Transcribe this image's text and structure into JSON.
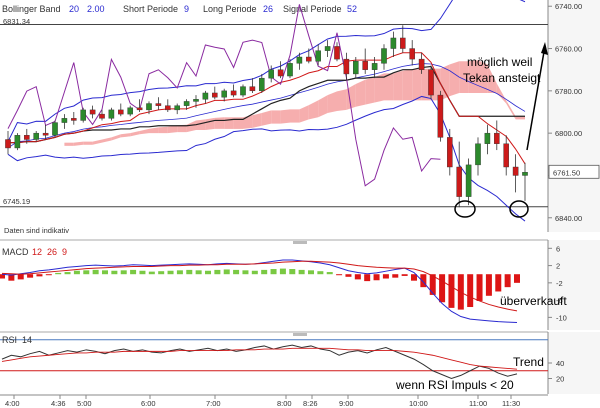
{
  "header": {
    "bollinger_label": "Bollinger Band",
    "bollinger_p1": "20",
    "bollinger_p2": "2.00",
    "short_label": "Short Periode",
    "short_val": "9",
    "long_label": "Long Periode",
    "long_val": "26",
    "signal_label": "Signal Periode",
    "signal_val": "52",
    "top_value": "6831.34"
  },
  "main": {
    "low_value": "6745.19",
    "last_price": "6761.50",
    "y_ticks": [
      "6840.00",
      "6820.00",
      "6800.00",
      "6780.00",
      "6760.00",
      "6740.00"
    ],
    "status": "Daten sind indikativ"
  },
  "macd": {
    "label": "MACD",
    "p1": "12",
    "p2": "26",
    "p3": "9",
    "y_ticks": [
      "6",
      "2",
      "-2",
      "-6",
      "-10"
    ]
  },
  "rsi": {
    "label": "RSI",
    "period": "14",
    "y_ticks": [
      "40",
      "20"
    ]
  },
  "time_axis": [
    "4:00",
    "4:36",
    "5:00",
    "6:00",
    "7:00",
    "8:00",
    "8:26",
    "9:00",
    "10:00",
    "11:00",
    "11:30"
  ],
  "annotations": {
    "note1": "möglich weil",
    "note2": "Tekan ansteigt",
    "note3": "überverkauft",
    "note4": "Trend",
    "note5": "wenn RSI  Impuls < 20"
  },
  "chart_data": [
    {
      "type": "candlestick",
      "title": "",
      "ylim": [
        6738,
        6842
      ],
      "y_ticks": [
        6740,
        6760,
        6780,
        6800,
        6820,
        6840
      ],
      "reference_lines": [
        6831.34,
        6745.19
      ],
      "last_price": 6761.5,
      "candles": [
        {
          "o": 6777,
          "h": 6781,
          "l": 6770,
          "c": 6773
        },
        {
          "o": 6773,
          "h": 6780,
          "l": 6772,
          "c": 6779
        },
        {
          "o": 6779,
          "h": 6782,
          "l": 6775,
          "c": 6777
        },
        {
          "o": 6777,
          "h": 6781,
          "l": 6776,
          "c": 6780
        },
        {
          "o": 6780,
          "h": 6784,
          "l": 6777,
          "c": 6779
        },
        {
          "o": 6779,
          "h": 6786,
          "l": 6778,
          "c": 6785
        },
        {
          "o": 6785,
          "h": 6789,
          "l": 6782,
          "c": 6787
        },
        {
          "o": 6787,
          "h": 6790,
          "l": 6784,
          "c": 6786
        },
        {
          "o": 6786,
          "h": 6792,
          "l": 6785,
          "c": 6791
        },
        {
          "o": 6791,
          "h": 6793,
          "l": 6787,
          "c": 6789
        },
        {
          "o": 6789,
          "h": 6791,
          "l": 6786,
          "c": 6787
        },
        {
          "o": 6787,
          "h": 6792,
          "l": 6786,
          "c": 6791
        },
        {
          "o": 6791,
          "h": 6794,
          "l": 6788,
          "c": 6789
        },
        {
          "o": 6789,
          "h": 6793,
          "l": 6788,
          "c": 6792
        },
        {
          "o": 6792,
          "h": 6796,
          "l": 6790,
          "c": 6791
        },
        {
          "o": 6791,
          "h": 6795,
          "l": 6789,
          "c": 6794
        },
        {
          "o": 6794,
          "h": 6797,
          "l": 6791,
          "c": 6793
        },
        {
          "o": 6793,
          "h": 6796,
          "l": 6790,
          "c": 6791
        },
        {
          "o": 6791,
          "h": 6794,
          "l": 6789,
          "c": 6793
        },
        {
          "o": 6793,
          "h": 6796,
          "l": 6791,
          "c": 6795
        },
        {
          "o": 6795,
          "h": 6798,
          "l": 6792,
          "c": 6796
        },
        {
          "o": 6796,
          "h": 6800,
          "l": 6794,
          "c": 6799
        },
        {
          "o": 6799,
          "h": 6802,
          "l": 6796,
          "c": 6797
        },
        {
          "o": 6797,
          "h": 6801,
          "l": 6795,
          "c": 6800
        },
        {
          "o": 6800,
          "h": 6803,
          "l": 6797,
          "c": 6798
        },
        {
          "o": 6798,
          "h": 6803,
          "l": 6797,
          "c": 6802
        },
        {
          "o": 6802,
          "h": 6806,
          "l": 6799,
          "c": 6800
        },
        {
          "o": 6800,
          "h": 6808,
          "l": 6799,
          "c": 6806
        },
        {
          "o": 6806,
          "h": 6812,
          "l": 6804,
          "c": 6810
        },
        {
          "o": 6810,
          "h": 6814,
          "l": 6806,
          "c": 6807
        },
        {
          "o": 6807,
          "h": 6815,
          "l": 6806,
          "c": 6813
        },
        {
          "o": 6813,
          "h": 6818,
          "l": 6810,
          "c": 6816
        },
        {
          "o": 6816,
          "h": 6820,
          "l": 6813,
          "c": 6814
        },
        {
          "o": 6814,
          "h": 6822,
          "l": 6812,
          "c": 6819
        },
        {
          "o": 6819,
          "h": 6824,
          "l": 6816,
          "c": 6821
        },
        {
          "o": 6821,
          "h": 6823,
          "l": 6814,
          "c": 6815
        },
        {
          "o": 6815,
          "h": 6818,
          "l": 6805,
          "c": 6808
        },
        {
          "o": 6808,
          "h": 6816,
          "l": 6806,
          "c": 6814
        },
        {
          "o": 6814,
          "h": 6820,
          "l": 6808,
          "c": 6810
        },
        {
          "o": 6810,
          "h": 6816,
          "l": 6806,
          "c": 6813
        },
        {
          "o": 6813,
          "h": 6822,
          "l": 6810,
          "c": 6820
        },
        {
          "o": 6820,
          "h": 6828,
          "l": 6816,
          "c": 6825
        },
        {
          "o": 6825,
          "h": 6831,
          "l": 6818,
          "c": 6820
        },
        {
          "o": 6820,
          "h": 6824,
          "l": 6812,
          "c": 6815
        },
        {
          "o": 6815,
          "h": 6818,
          "l": 6808,
          "c": 6810
        },
        {
          "o": 6810,
          "h": 6812,
          "l": 6796,
          "c": 6798
        },
        {
          "o": 6798,
          "h": 6800,
          "l": 6776,
          "c": 6778
        },
        {
          "o": 6778,
          "h": 6782,
          "l": 6760,
          "c": 6764
        },
        {
          "o": 6764,
          "h": 6776,
          "l": 6745,
          "c": 6750
        },
        {
          "o": 6750,
          "h": 6768,
          "l": 6746,
          "c": 6765
        },
        {
          "o": 6765,
          "h": 6778,
          "l": 6760,
          "c": 6775
        },
        {
          "o": 6775,
          "h": 6784,
          "l": 6770,
          "c": 6780
        },
        {
          "o": 6780,
          "h": 6786,
          "l": 6772,
          "c": 6775
        },
        {
          "o": 6775,
          "h": 6779,
          "l": 6760,
          "c": 6764
        },
        {
          "o": 6764,
          "h": 6770,
          "l": 6752,
          "c": 6760
        },
        {
          "o": 6760,
          "h": 6766,
          "l": 6748,
          "c": 6761.5
        }
      ]
    },
    {
      "type": "bar",
      "title": "MACD",
      "ylim": [
        -12,
        7
      ],
      "y_ticks": [
        6,
        2,
        -2,
        -6,
        -10
      ],
      "histogram": [
        -1,
        -1.5,
        -1.2,
        -0.8,
        -0.5,
        -0.2,
        0.3,
        0.5,
        0.8,
        0.9,
        1,
        0.9,
        0.8,
        0.9,
        1,
        0.8,
        0.6,
        0.7,
        0.8,
        0.9,
        1,
        0.9,
        0.8,
        1,
        1.1,
        1,
        0.9,
        0.8,
        1,
        1.2,
        1.3,
        1.2,
        1,
        0.9,
        0.7,
        0.5,
        -0.2,
        -0.6,
        -1.2,
        -1.6,
        -1.4,
        -1,
        -0.8,
        -0.4,
        -1.5,
        -3,
        -4.8,
        -6.5,
        -7.8,
        -8.2,
        -7.6,
        -6.2,
        -5,
        -4,
        -3,
        -2
      ],
      "macd_line": [
        0,
        -0.2,
        0.1,
        0.4,
        0.8,
        1,
        1.3,
        1.6,
        1.8,
        2,
        2.1,
        2,
        1.9,
        2,
        2.2,
        2.1,
        2,
        2.1,
        2.2,
        2.3,
        2.4,
        2.3,
        2.2,
        2.4,
        2.5,
        2.4,
        2.3,
        2.4,
        2.7,
        3,
        3.3,
        3.3,
        3.1,
        2.9,
        2.6,
        2.2,
        1.5,
        0.8,
        0.4,
        0.1,
        0.3,
        0.7,
        1.1,
        1.4,
        0.4,
        -1.8,
        -4.4,
        -6.8,
        -8.6,
        -9.8,
        -10.4,
        -10.6,
        -10.8,
        -11,
        -11.1,
        -11.2
      ],
      "signal_line": [
        0.2,
        0.1,
        0,
        0.1,
        0.3,
        0.5,
        0.7,
        0.9,
        1.1,
        1.3,
        1.4,
        1.5,
        1.6,
        1.7,
        1.8,
        1.8,
        1.8,
        1.9,
        2,
        2,
        2.1,
        2.1,
        2.2,
        2.2,
        2.3,
        2.3,
        2.3,
        2.4,
        2.5,
        2.6,
        2.8,
        2.9,
        3,
        3,
        2.9,
        2.8,
        2.6,
        2.3,
        2,
        1.8,
        1.6,
        1.5,
        1.4,
        1.4,
        1.2,
        0.6,
        -0.4,
        -1.6,
        -2.9,
        -4.2,
        -5.3,
        -6.2,
        -7,
        -7.6,
        -8.1,
        -8.5
      ]
    },
    {
      "type": "line",
      "title": "RSI",
      "ylim": [
        0,
        80
      ],
      "y_ticks": [
        40,
        20
      ],
      "upper_line": 70,
      "lower_line": 30,
      "series": [
        {
          "name": "RSI",
          "values": [
            45,
            50,
            48,
            52,
            55,
            50,
            53,
            56,
            54,
            57,
            55,
            52,
            56,
            58,
            55,
            57,
            54,
            53,
            56,
            58,
            55,
            57,
            59,
            56,
            58,
            55,
            57,
            60,
            62,
            58,
            61,
            63,
            60,
            62,
            58,
            56,
            50,
            54,
            56,
            53,
            57,
            60,
            55,
            50,
            45,
            38,
            30,
            25,
            20,
            24,
            30,
            36,
            33,
            27,
            23,
            26
          ]
        },
        {
          "name": "",
          "values": [
            42,
            44,
            46,
            48,
            49,
            50,
            51,
            52,
            53,
            53,
            54,
            54,
            54,
            55,
            55,
            55,
            55,
            55,
            55,
            56,
            56,
            56,
            56,
            56,
            56,
            57,
            57,
            57,
            58,
            58,
            58,
            59,
            59,
            59,
            59,
            59,
            58,
            57,
            57,
            56,
            56,
            56,
            56,
            55,
            54,
            52,
            50,
            47,
            44,
            41,
            38,
            36,
            35,
            34,
            33,
            32
          ]
        }
      ]
    }
  ]
}
